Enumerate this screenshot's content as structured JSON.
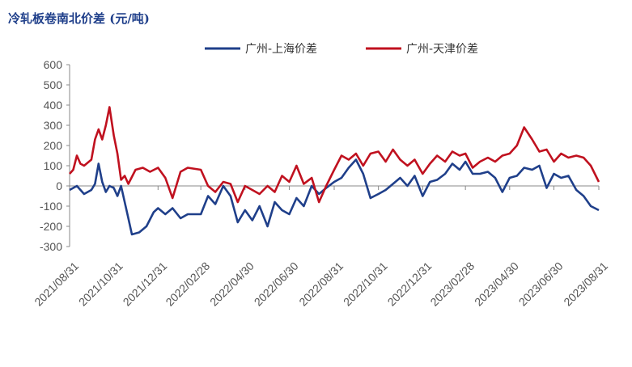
{
  "chart_data": {
    "type": "line",
    "title": "冷轧板卷南北价差 (元/吨)",
    "ylim": [
      -300,
      600
    ],
    "yticks": [
      600,
      500,
      400,
      300,
      200,
      100,
      0,
      -100,
      -200,
      -300
    ],
    "xticks": [
      "2021/08/31",
      "2021/10/31",
      "2021/12/31",
      "2022/02/28",
      "2022/04/30",
      "2022/06/30",
      "2022/08/31",
      "2022/10/31",
      "2022/12/31",
      "2023/02/28",
      "2023/04/30",
      "2023/06/30",
      "2023/08/31"
    ],
    "legend": "top",
    "grid": false,
    "series": [
      {
        "name": "广州-上海价差",
        "color": "#1f3f8a",
        "points": [
          [
            "2021/08/31",
            -20
          ],
          [
            "2021/09/10",
            0
          ],
          [
            "2021/09/20",
            -40
          ],
          [
            "2021/09/30",
            -20
          ],
          [
            "2021/10/05",
            10
          ],
          [
            "2021/10/10",
            110
          ],
          [
            "2021/10/15",
            20
          ],
          [
            "2021/10/20",
            -30
          ],
          [
            "2021/10/25",
            0
          ],
          [
            "2021/10/31",
            -10
          ],
          [
            "2021/11/05",
            -50
          ],
          [
            "2021/11/10",
            0
          ],
          [
            "2021/11/15",
            -80
          ],
          [
            "2021/11/20",
            -160
          ],
          [
            "2021/11/25",
            -240
          ],
          [
            "2021/12/05",
            -230
          ],
          [
            "2021/12/15",
            -200
          ],
          [
            "2021/12/25",
            -130
          ],
          [
            "2021/12/31",
            -110
          ],
          [
            "2022/01/10",
            -140
          ],
          [
            "2022/01/20",
            -110
          ],
          [
            "2022/01/31",
            -160
          ],
          [
            "2022/02/10",
            -140
          ],
          [
            "2022/02/28",
            -140
          ],
          [
            "2022/03/10",
            -50
          ],
          [
            "2022/03/20",
            -90
          ],
          [
            "2022/03/31",
            0
          ],
          [
            "2022/04/10",
            -50
          ],
          [
            "2022/04/20",
            -180
          ],
          [
            "2022/04/30",
            -120
          ],
          [
            "2022/05/10",
            -170
          ],
          [
            "2022/05/20",
            -100
          ],
          [
            "2022/05/31",
            -200
          ],
          [
            "2022/06/10",
            -80
          ],
          [
            "2022/06/20",
            -120
          ],
          [
            "2022/06/30",
            -140
          ],
          [
            "2022/07/10",
            -60
          ],
          [
            "2022/07/20",
            -100
          ],
          [
            "2022/07/31",
            0
          ],
          [
            "2022/08/10",
            -40
          ],
          [
            "2022/08/20",
            -10
          ],
          [
            "2022/08/31",
            20
          ],
          [
            "2022/09/10",
            40
          ],
          [
            "2022/09/20",
            90
          ],
          [
            "2022/09/30",
            130
          ],
          [
            "2022/10/10",
            60
          ],
          [
            "2022/10/20",
            -60
          ],
          [
            "2022/10/31",
            -40
          ],
          [
            "2022/11/10",
            -20
          ],
          [
            "2022/11/20",
            10
          ],
          [
            "2022/11/30",
            40
          ],
          [
            "2022/12/10",
            0
          ],
          [
            "2022/12/20",
            50
          ],
          [
            "2022/12/31",
            -50
          ],
          [
            "2023/01/10",
            20
          ],
          [
            "2023/01/20",
            30
          ],
          [
            "2023/01/31",
            60
          ],
          [
            "2023/02/10",
            110
          ],
          [
            "2023/02/20",
            80
          ],
          [
            "2023/02/28",
            120
          ],
          [
            "2023/03/10",
            60
          ],
          [
            "2023/03/20",
            60
          ],
          [
            "2023/03/31",
            70
          ],
          [
            "2023/04/10",
            40
          ],
          [
            "2023/04/20",
            -30
          ],
          [
            "2023/04/30",
            40
          ],
          [
            "2023/05/10",
            50
          ],
          [
            "2023/05/20",
            90
          ],
          [
            "2023/05/31",
            80
          ],
          [
            "2023/06/10",
            100
          ],
          [
            "2023/06/20",
            -10
          ],
          [
            "2023/06/30",
            60
          ],
          [
            "2023/07/10",
            40
          ],
          [
            "2023/07/20",
            50
          ],
          [
            "2023/07/31",
            -20
          ],
          [
            "2023/08/10",
            -50
          ],
          [
            "2023/08/20",
            -100
          ],
          [
            "2023/08/31",
            -120
          ]
        ]
      },
      {
        "name": "广州-天津价差",
        "color": "#c0111f",
        "points": [
          [
            "2021/08/31",
            60
          ],
          [
            "2021/09/05",
            80
          ],
          [
            "2021/09/10",
            150
          ],
          [
            "2021/09/15",
            110
          ],
          [
            "2021/09/20",
            100
          ],
          [
            "2021/09/30",
            130
          ],
          [
            "2021/10/05",
            230
          ],
          [
            "2021/10/10",
            280
          ],
          [
            "2021/10/15",
            230
          ],
          [
            "2021/10/20",
            300
          ],
          [
            "2021/10/25",
            390
          ],
          [
            "2021/10/31",
            250
          ],
          [
            "2021/11/05",
            160
          ],
          [
            "2021/11/10",
            30
          ],
          [
            "2021/11/15",
            50
          ],
          [
            "2021/11/20",
            10
          ],
          [
            "2021/11/30",
            80
          ],
          [
            "2021/12/10",
            90
          ],
          [
            "2021/12/20",
            70
          ],
          [
            "2021/12/31",
            90
          ],
          [
            "2022/01/10",
            40
          ],
          [
            "2022/01/20",
            -60
          ],
          [
            "2022/01/31",
            70
          ],
          [
            "2022/02/10",
            90
          ],
          [
            "2022/02/28",
            80
          ],
          [
            "2022/03/10",
            0
          ],
          [
            "2022/03/20",
            -30
          ],
          [
            "2022/03/31",
            20
          ],
          [
            "2022/04/10",
            10
          ],
          [
            "2022/04/20",
            -80
          ],
          [
            "2022/04/30",
            0
          ],
          [
            "2022/05/10",
            -20
          ],
          [
            "2022/05/20",
            -40
          ],
          [
            "2022/05/31",
            0
          ],
          [
            "2022/06/10",
            -30
          ],
          [
            "2022/06/20",
            50
          ],
          [
            "2022/06/30",
            20
          ],
          [
            "2022/07/10",
            100
          ],
          [
            "2022/07/20",
            10
          ],
          [
            "2022/07/31",
            40
          ],
          [
            "2022/08/10",
            -80
          ],
          [
            "2022/08/20",
            0
          ],
          [
            "2022/08/31",
            80
          ],
          [
            "2022/09/10",
            150
          ],
          [
            "2022/09/20",
            130
          ],
          [
            "2022/09/30",
            160
          ],
          [
            "2022/10/10",
            100
          ],
          [
            "2022/10/20",
            160
          ],
          [
            "2022/10/31",
            170
          ],
          [
            "2022/11/10",
            120
          ],
          [
            "2022/11/20",
            180
          ],
          [
            "2022/11/30",
            130
          ],
          [
            "2022/12/10",
            100
          ],
          [
            "2022/12/20",
            130
          ],
          [
            "2022/12/31",
            60
          ],
          [
            "2023/01/10",
            110
          ],
          [
            "2023/01/20",
            150
          ],
          [
            "2023/01/31",
            120
          ],
          [
            "2023/02/10",
            170
          ],
          [
            "2023/02/20",
            150
          ],
          [
            "2023/02/28",
            160
          ],
          [
            "2023/03/10",
            90
          ],
          [
            "2023/03/20",
            120
          ],
          [
            "2023/03/31",
            140
          ],
          [
            "2023/04/10",
            120
          ],
          [
            "2023/04/20",
            150
          ],
          [
            "2023/04/30",
            160
          ],
          [
            "2023/05/10",
            200
          ],
          [
            "2023/05/20",
            290
          ],
          [
            "2023/05/31",
            230
          ],
          [
            "2023/06/10",
            170
          ],
          [
            "2023/06/20",
            180
          ],
          [
            "2023/06/30",
            120
          ],
          [
            "2023/07/10",
            160
          ],
          [
            "2023/07/20",
            140
          ],
          [
            "2023/07/31",
            150
          ],
          [
            "2023/08/10",
            140
          ],
          [
            "2023/08/20",
            100
          ],
          [
            "2023/08/31",
            20
          ]
        ]
      }
    ]
  }
}
